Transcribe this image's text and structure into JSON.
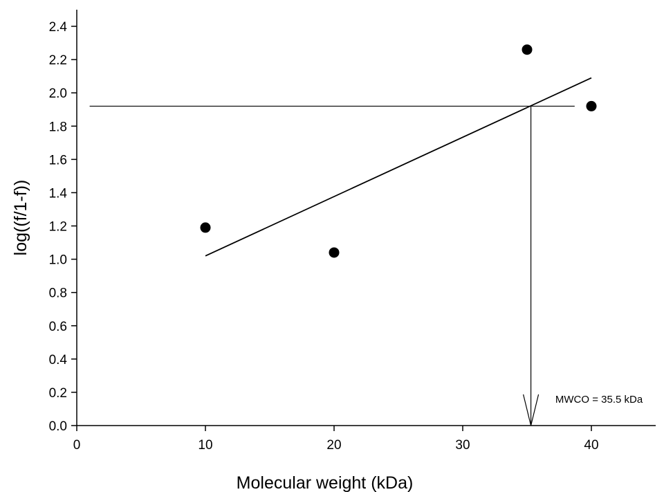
{
  "chart_data": {
    "type": "scatter",
    "title": "",
    "xlabel": "Molecular weight (kDa)",
    "ylabel": "log((f/1-f))",
    "xlim": [
      0,
      45
    ],
    "ylim": [
      0,
      2.5
    ],
    "x_ticks": [
      0,
      10,
      20,
      30,
      40
    ],
    "y_ticks": [
      0.0,
      0.2,
      0.4,
      0.6,
      0.8,
      1.0,
      1.2,
      1.4,
      1.6,
      1.8,
      2.0,
      2.2,
      2.4
    ],
    "x_tick_labels": [
      "0",
      "10",
      "20",
      "30",
      "40"
    ],
    "y_tick_labels": [
      "0.0",
      "0.2",
      "0.4",
      "0.6",
      "0.8",
      "1.0",
      "1.2",
      "1.4",
      "1.6",
      "1.8",
      "2.0",
      "2.2",
      "2.4"
    ],
    "grid": false,
    "series": [
      {
        "points": [
          {
            "x": 10,
            "y": 1.19
          },
          {
            "x": 20,
            "y": 1.04
          },
          {
            "x": 35,
            "y": 2.26
          },
          {
            "x": 40,
            "y": 1.92
          }
        ],
        "color": "#000000"
      }
    ],
    "fit_line": {
      "x": [
        10,
        40
      ],
      "y": [
        1.02,
        2.09
      ]
    },
    "reference_lines": {
      "horizontal": {
        "y": 1.92,
        "x_from": 1,
        "x_to": 38.7
      },
      "vertical_arrow": {
        "x": 35.3,
        "y_from": 1.92,
        "y_to": 0
      }
    },
    "annotation": {
      "text": "MWCO = 35.5 kDa",
      "x": 37.2,
      "y": 0.15
    }
  }
}
